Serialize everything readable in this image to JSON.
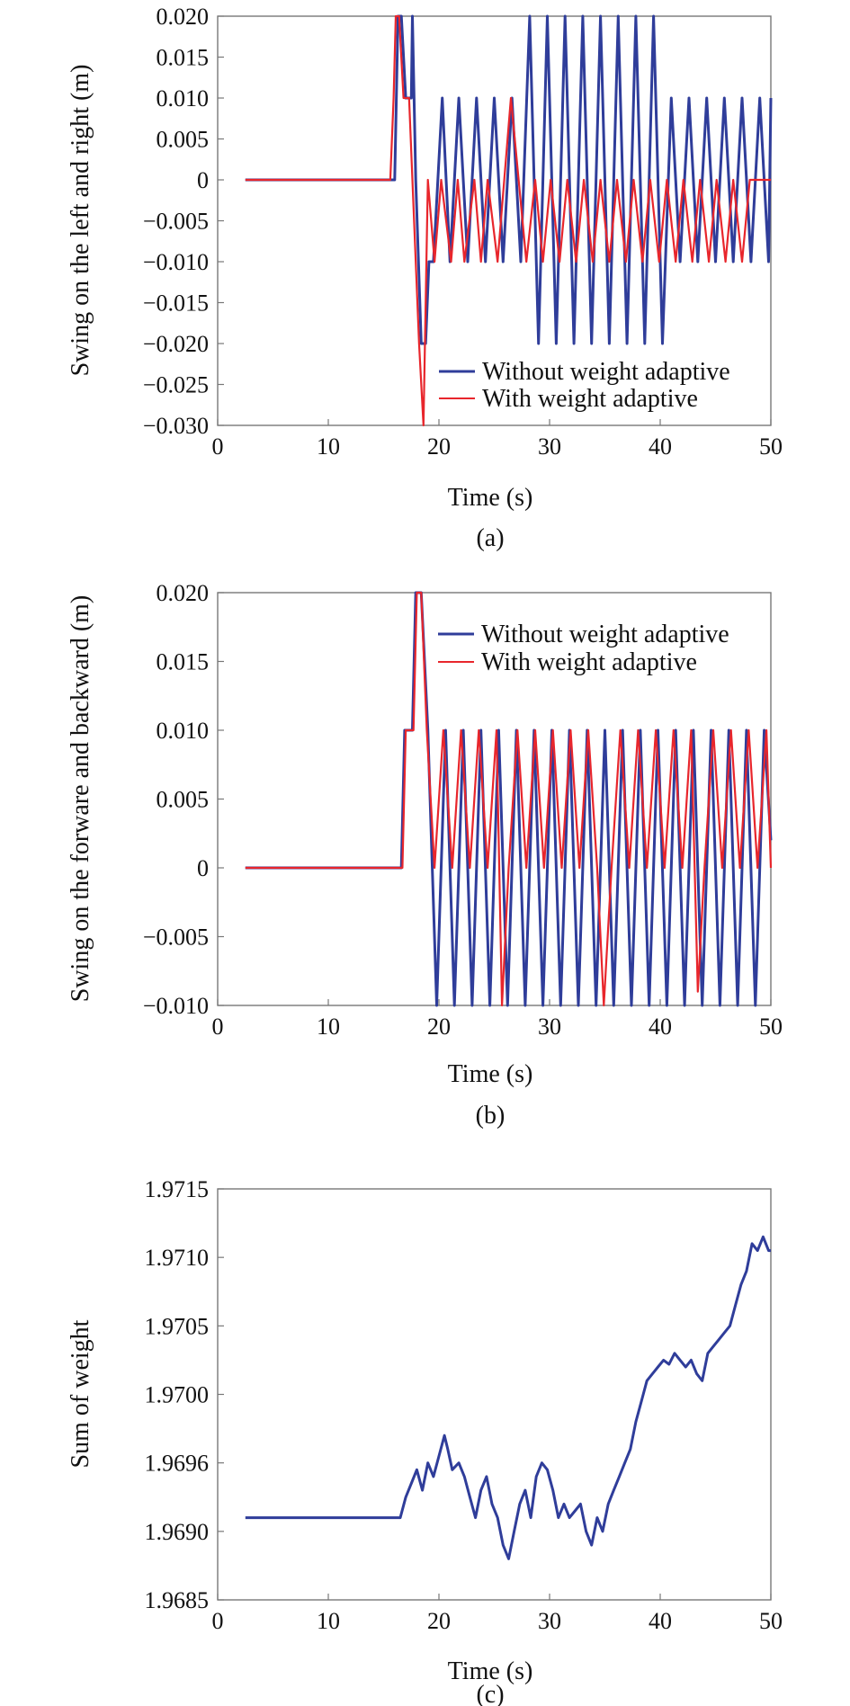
{
  "colors": {
    "without": "#2f3d9a",
    "with": "#e8262c",
    "axis": "#777777",
    "text": "#111111"
  },
  "panels": [
    {
      "caption": "(a)",
      "ylabel": "Swing on the left and right (m)",
      "xlabel": "Time (s)",
      "xticks": [
        "0",
        "10",
        "20",
        "30",
        "40",
        "50"
      ],
      "yticks": [
        "0.020",
        "0.015",
        "0.010",
        "0.005",
        "0",
        "−0.005",
        "−0.010",
        "−0.015",
        "−0.020",
        "−0.025",
        "−0.030"
      ],
      "legend": [
        "Without weight adaptive",
        "With weight adaptive"
      ]
    },
    {
      "caption": "(b)",
      "ylabel": "Swing on the forware and backward (m)",
      "xlabel": "Time (s)",
      "xticks": [
        "0",
        "10",
        "20",
        "30",
        "40",
        "50"
      ],
      "yticks": [
        "0.020",
        "0.015",
        "0.010",
        "0.005",
        "0",
        "−0.005",
        "−0.010"
      ],
      "legend": [
        "Without weight adaptive",
        "With weight adaptive"
      ]
    },
    {
      "caption": "(c)",
      "ylabel": "Sum of weight",
      "xlabel": "Time (s)",
      "xticks": [
        "0",
        "10",
        "20",
        "30",
        "40",
        "50"
      ],
      "yticks": [
        "1.9715",
        "1.9710",
        "1.9705",
        "1.9700",
        "1.9696",
        "1.9690",
        "1.9685"
      ],
      "legend": []
    }
  ],
  "chart_data": [
    {
      "type": "line",
      "xlabel": "Time (s)",
      "ylabel": "Swing on the left and right (m)",
      "xlim": [
        0,
        50
      ],
      "ylim": [
        -0.03,
        0.02
      ],
      "grid": false,
      "legend_position": "bottom-right",
      "series": [
        {
          "name": "Without weight adaptive",
          "x": [
            2.5,
            16.0,
            16.3,
            16.6,
            17.0,
            17.5,
            17.6,
            17.9,
            18.4,
            18.8,
            19.1,
            19.5,
            20.3,
            21.0,
            21.8,
            22.6,
            23.4,
            24.2,
            25.0,
            25.8,
            26.6,
            27.4,
            28.2,
            29.0,
            29.8,
            30.6,
            31.4,
            32.2,
            33.0,
            33.8,
            34.6,
            35.4,
            36.2,
            37.0,
            37.8,
            38.6,
            39.4,
            40.2,
            41.0,
            41.8,
            42.6,
            43.4,
            44.2,
            45.0,
            45.8,
            46.6,
            47.4,
            48.2,
            49.0,
            49.8,
            50.0
          ],
          "y": [
            0,
            0,
            0.02,
            0.02,
            0.01,
            0.01,
            0.02,
            0,
            -0.02,
            -0.02,
            -0.01,
            -0.01,
            0.01,
            -0.01,
            0.01,
            -0.01,
            0.01,
            -0.01,
            0.01,
            -0.01,
            0.01,
            -0.01,
            0.02,
            -0.02,
            0.02,
            -0.02,
            0.02,
            -0.02,
            0.02,
            -0.02,
            0.02,
            -0.02,
            0.02,
            -0.02,
            0.02,
            -0.02,
            0.02,
            -0.02,
            0.01,
            -0.01,
            0.01,
            -0.01,
            0.01,
            -0.01,
            0.01,
            -0.01,
            0.01,
            -0.01,
            0.01,
            -0.01,
            0.01
          ]
        },
        {
          "name": "With weight adaptive",
          "x": [
            2.5,
            15.6,
            15.9,
            16.1,
            16.4,
            16.8,
            17.3,
            17.6,
            18.2,
            18.6,
            19.0,
            19.6,
            20.2,
            21.1,
            21.7,
            22.3,
            23.2,
            23.8,
            24.4,
            25.3,
            25.9,
            26.5,
            27.2,
            27.9,
            28.7,
            29.4,
            30.1,
            30.9,
            31.6,
            32.4,
            33.1,
            33.9,
            34.6,
            35.4,
            36.1,
            36.9,
            37.6,
            38.4,
            39.1,
            39.9,
            40.6,
            41.4,
            42.1,
            42.9,
            43.6,
            44.4,
            45.1,
            45.9,
            46.6,
            47.4,
            48.1,
            50.0
          ],
          "y": [
            0,
            0,
            0.01,
            0.02,
            0.02,
            0.01,
            0.01,
            0,
            -0.02,
            -0.03,
            0,
            -0.01,
            0,
            -0.01,
            0,
            -0.01,
            0,
            -0.01,
            0,
            -0.01,
            0,
            0.01,
            0,
            -0.01,
            0,
            -0.01,
            0,
            -0.01,
            0,
            -0.01,
            0,
            -0.01,
            0,
            -0.01,
            0,
            -0.01,
            0,
            -0.01,
            0,
            -0.01,
            0,
            -0.01,
            0,
            -0.01,
            0,
            -0.01,
            0,
            -0.01,
            0,
            -0.01,
            0,
            0
          ]
        }
      ]
    },
    {
      "type": "line",
      "xlabel": "Time (s)",
      "ylabel": "Swing on the forware and backward (m)",
      "xlim": [
        0,
        50
      ],
      "ylim": [
        -0.01,
        0.02
      ],
      "grid": false,
      "legend_position": "top-right",
      "series": [
        {
          "name": "Without weight adaptive",
          "x": [
            2.5,
            16.6,
            16.9,
            17.6,
            17.9,
            18.4,
            19.0,
            19.8,
            20.6,
            21.4,
            22.2,
            23.0,
            23.8,
            24.6,
            25.4,
            26.2,
            27.0,
            27.8,
            28.6,
            29.4,
            30.2,
            31.0,
            31.8,
            32.6,
            33.4,
            34.2,
            35.0,
            35.8,
            36.6,
            37.4,
            38.2,
            39.0,
            39.8,
            40.6,
            41.4,
            42.2,
            43.0,
            43.8,
            44.6,
            45.4,
            46.2,
            47.0,
            47.8,
            48.6,
            49.4,
            50.0
          ],
          "y": [
            0,
            0,
            0.01,
            0.01,
            0.02,
            0.02,
            0.01,
            -0.01,
            0.01,
            -0.01,
            0.01,
            -0.01,
            0.01,
            -0.01,
            0.01,
            -0.01,
            0.01,
            -0.01,
            0.01,
            -0.01,
            0.01,
            -0.01,
            0.01,
            -0.01,
            0.01,
            -0.01,
            0.01,
            -0.01,
            0.01,
            -0.01,
            0.01,
            -0.01,
            0.01,
            -0.01,
            0.01,
            -0.01,
            0.01,
            -0.01,
            0.01,
            -0.01,
            0.01,
            -0.01,
            0.01,
            -0.01,
            0.01,
            0.002
          ]
        },
        {
          "name": "With weight adaptive",
          "x": [
            2.5,
            16.7,
            17.0,
            17.7,
            18.0,
            18.4,
            18.9,
            19.6,
            20.4,
            21.2,
            22.0,
            22.8,
            23.6,
            24.4,
            25.2,
            25.7,
            26.3,
            27.1,
            27.9,
            28.7,
            29.5,
            30.3,
            31.1,
            31.9,
            32.7,
            33.5,
            34.3,
            34.9,
            35.6,
            36.4,
            37.2,
            38.0,
            38.8,
            39.6,
            40.4,
            41.2,
            42.0,
            42.8,
            43.4,
            44.0,
            44.8,
            45.6,
            46.4,
            47.2,
            48.0,
            48.8,
            49.6,
            50.0
          ],
          "y": [
            0,
            0,
            0.01,
            0.01,
            0.02,
            0.02,
            0.01,
            0,
            0.01,
            0,
            0.01,
            0,
            0.01,
            0,
            0.01,
            -0.01,
            0,
            0.01,
            0,
            0.01,
            0,
            0.01,
            0,
            0.01,
            0,
            0.01,
            0,
            -0.01,
            0,
            0.01,
            0,
            0.01,
            0,
            0.01,
            0,
            0.01,
            0,
            0.01,
            -0.009,
            0,
            0.01,
            0,
            0.01,
            0,
            0.01,
            0,
            0.01,
            0
          ]
        }
      ]
    },
    {
      "type": "line",
      "xlabel": "Time (s)",
      "ylabel": "Sum of weight",
      "xlim": [
        0,
        50
      ],
      "ylim": [
        1.9685,
        1.9715
      ],
      "grid": false,
      "series": [
        {
          "x": [
            2.5,
            16.5,
            17.0,
            17.5,
            18.0,
            18.5,
            19.0,
            19.5,
            20.0,
            20.5,
            20.8,
            21.2,
            21.8,
            22.3,
            22.8,
            23.3,
            23.8,
            24.3,
            24.8,
            25.3,
            25.8,
            26.3,
            26.8,
            27.3,
            27.8,
            28.3,
            28.8,
            29.3,
            29.8,
            30.3,
            30.8,
            31.3,
            31.8,
            32.3,
            32.8,
            33.3,
            33.8,
            34.3,
            34.8,
            35.3,
            35.8,
            36.3,
            36.8,
            37.3,
            37.8,
            38.3,
            38.8,
            39.3,
            39.8,
            40.3,
            40.8,
            41.3,
            41.8,
            42.3,
            42.8,
            43.3,
            43.8,
            44.3,
            44.8,
            45.3,
            45.8,
            46.3,
            46.8,
            47.3,
            47.8,
            48.3,
            48.8,
            49.3,
            49.8,
            50.0
          ],
          "y": [
            1.9691,
            1.9691,
            1.96925,
            1.96935,
            1.96945,
            1.9693,
            1.9695,
            1.9694,
            1.96955,
            1.9697,
            1.9696,
            1.96945,
            1.9695,
            1.9694,
            1.96925,
            1.9691,
            1.9693,
            1.9694,
            1.9692,
            1.9691,
            1.9689,
            1.9688,
            1.969,
            1.9692,
            1.9693,
            1.9691,
            1.9694,
            1.9695,
            1.96945,
            1.9693,
            1.9691,
            1.9692,
            1.9691,
            1.96915,
            1.9692,
            1.969,
            1.9689,
            1.9691,
            1.969,
            1.9692,
            1.9693,
            1.9694,
            1.9695,
            1.9696,
            1.9698,
            1.96995,
            1.9701,
            1.97015,
            1.9702,
            1.97025,
            1.97022,
            1.9703,
            1.97025,
            1.9702,
            1.97025,
            1.97015,
            1.9701,
            1.9703,
            1.97035,
            1.9704,
            1.97045,
            1.9705,
            1.97065,
            1.9708,
            1.9709,
            1.9711,
            1.97105,
            1.97115,
            1.97105,
            1.97105
          ]
        }
      ]
    }
  ]
}
